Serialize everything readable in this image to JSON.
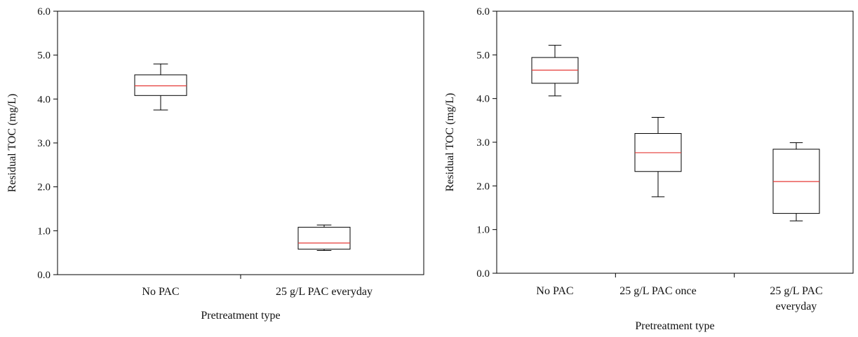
{
  "chart_data": [
    {
      "type": "box",
      "xlabel": "Pretreatment type",
      "ylabel": "Residual TOC (mg/L)",
      "ylim": [
        0,
        6
      ],
      "yticks": [
        "0.0",
        "1.0",
        "2.0",
        "3.0",
        "4.0",
        "5.0",
        "6.0"
      ],
      "grid": false,
      "median_color": "#e53935",
      "categories": [
        {
          "label": [
            "No PAC"
          ],
          "min": 3.75,
          "q1": 4.08,
          "median": 4.3,
          "q3": 4.55,
          "max": 4.8
        },
        {
          "label": [
            "25 g/L PAC everyday"
          ],
          "min": 0.55,
          "q1": 0.58,
          "median": 0.72,
          "q3": 1.08,
          "max": 1.13
        }
      ]
    },
    {
      "type": "box",
      "xlabel": "Pretreatment type",
      "ylabel": "Residual TOC (mg/L)",
      "ylim": [
        0,
        6
      ],
      "yticks": [
        "0.0",
        "1.0",
        "2.0",
        "3.0",
        "4.0",
        "5.0",
        "6.0"
      ],
      "grid": false,
      "median_color": "#e53935",
      "categories": [
        {
          "label": [
            "No PAC"
          ],
          "min": 4.06,
          "q1": 4.35,
          "median": 4.65,
          "q3": 4.94,
          "max": 5.22
        },
        {
          "label": [
            "25 g/L PAC once"
          ],
          "min": 1.75,
          "q1": 2.33,
          "median": 2.76,
          "q3": 3.2,
          "max": 3.57
        },
        {
          "label": [
            "25 g/L PAC",
            "everyday"
          ],
          "min": 1.2,
          "q1": 1.37,
          "median": 2.1,
          "q3": 2.84,
          "max": 2.99
        }
      ]
    }
  ]
}
